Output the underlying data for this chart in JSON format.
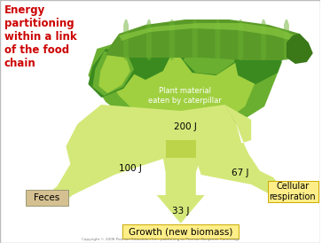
{
  "title": "Energy\npartitioning\nwithin a link\nof the food\nchain",
  "title_color": "#cc0000",
  "title_fontsize": 8.5,
  "bg_color": "#ffffff",
  "label_plant": "Plant material\neaten by caterpillar",
  "label_plant_color": "#ffffff",
  "label_200": "200 J",
  "label_100": "100 J",
  "label_33": "33 J",
  "label_67": "67 J",
  "label_feces": "Feces",
  "label_growth": "Growth (new biomass)",
  "label_cellular": "Cellular\nrespiration",
  "arrow_light": "#d4e87a",
  "arrow_mid": "#bbd44a",
  "arrow_dark": "#8ab830",
  "feces_box_color": "#d4c090",
  "growth_box_color": "#ffee88",
  "cellular_box_color": "#ffee88",
  "leaf_dark": "#3a8a20",
  "leaf_mid": "#6aaf30",
  "leaf_light": "#a0d040",
  "copyright": "Copyright © 2008 Pearson Education, Inc., publishing as Pearson Benjamin Cummings"
}
